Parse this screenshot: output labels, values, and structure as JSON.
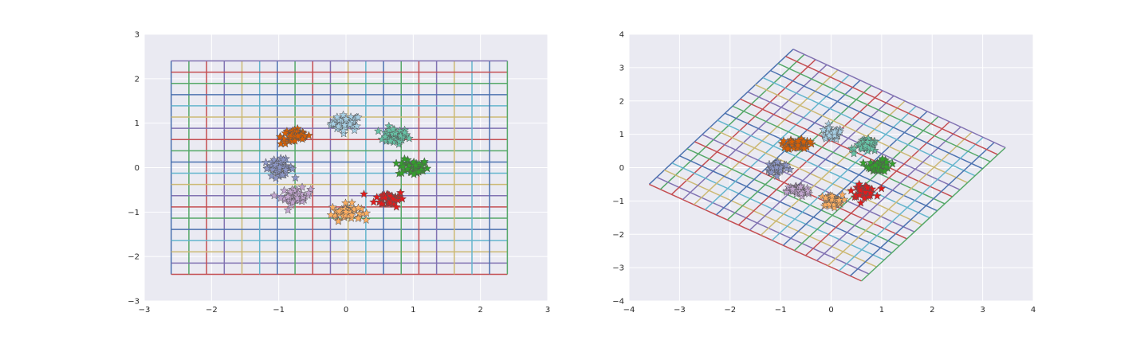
{
  "chart_data": [
    {
      "type": "scatter",
      "title": "",
      "xlabel": "",
      "ylabel": "",
      "xlim": [
        -3,
        3
      ],
      "ylim": [
        -3,
        3
      ],
      "xticks": [
        -3,
        -2,
        -1,
        0,
        1,
        2,
        3
      ],
      "yticks": [
        -3,
        -2,
        -1,
        0,
        1,
        2,
        3
      ],
      "grid": true,
      "marker": "star",
      "background": "#eaeaf2",
      "mesh": {
        "x_range": [
          -2.6,
          2.4
        ],
        "y_range": [
          -2.4,
          2.4
        ],
        "lines_per_direction": 20
      },
      "clusters": [
        {
          "center": [
            0.0,
            1.0
          ],
          "color": "#a6cee3"
        },
        {
          "center": [
            0.707,
            0.707
          ],
          "color": "#66c2a5"
        },
        {
          "center": [
            1.0,
            0.0
          ],
          "color": "#33a02c"
        },
        {
          "center": [
            0.65,
            -0.7
          ],
          "color": "#e31a1c"
        },
        {
          "center": [
            0.0,
            -1.0
          ],
          "color": "#fdae61"
        },
        {
          "center": [
            -0.75,
            -0.65
          ],
          "color": "#c2a5cf"
        },
        {
          "center": [
            -1.0,
            0.0
          ],
          "color": "#8c96c6"
        },
        {
          "center": [
            -0.75,
            0.7
          ],
          "color": "#d95f02"
        }
      ]
    },
    {
      "type": "scatter",
      "title": "",
      "xlabel": "",
      "ylabel": "",
      "xlim": [
        -4,
        4
      ],
      "ylim": [
        -4,
        4
      ],
      "xticks": [
        -4,
        -3,
        -2,
        -1,
        0,
        1,
        2,
        3,
        4
      ],
      "yticks": [
        -4,
        -3,
        -2,
        -1,
        0,
        1,
        2,
        3,
        4
      ],
      "grid": true,
      "marker": "star",
      "background": "#eaeaf2",
      "mesh": {
        "corners": [
          [
            -3.6,
            -0.5
          ],
          [
            0.6,
            -3.4
          ],
          [
            3.45,
            0.6
          ],
          [
            -0.75,
            3.55
          ]
        ],
        "lines_per_direction": 20
      },
      "clusters": [
        {
          "center": [
            0.0,
            1.0
          ],
          "color": "#a6cee3"
        },
        {
          "center": [
            0.7,
            0.65
          ],
          "color": "#66c2a5"
        },
        {
          "center": [
            0.95,
            0.05
          ],
          "color": "#33a02c"
        },
        {
          "center": [
            0.65,
            -0.7
          ],
          "color": "#e31a1c"
        },
        {
          "center": [
            0.0,
            -1.0
          ],
          "color": "#fdae61"
        },
        {
          "center": [
            -0.65,
            -0.7
          ],
          "color": "#c2a5cf"
        },
        {
          "center": [
            -1.05,
            0.0
          ],
          "color": "#8c96c6"
        },
        {
          "center": [
            -0.65,
            0.7
          ],
          "color": "#d95f02"
        }
      ]
    }
  ],
  "palette": [
    "#4c72b0",
    "#55a868",
    "#c44e52",
    "#8172b2",
    "#ccb974",
    "#64b5cd"
  ]
}
